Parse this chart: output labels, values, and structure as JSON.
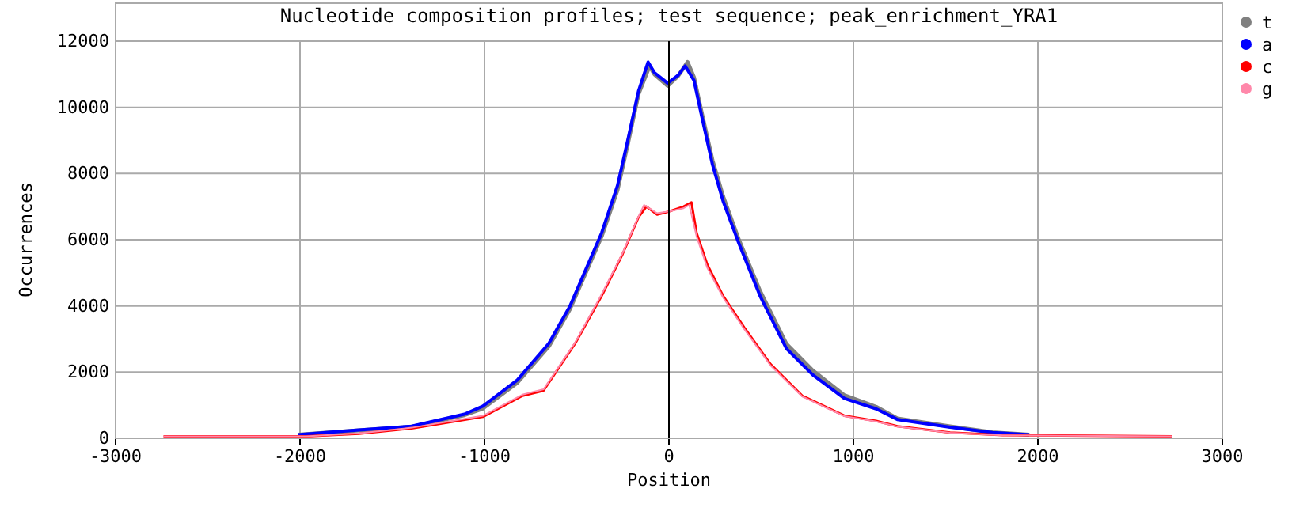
{
  "chart_data": {
    "type": "line",
    "title": "Nucleotide composition profiles; test sequence; peak_enrichment_YRA1",
    "xlabel": "Position",
    "ylabel": "Occurrences",
    "xlim": [
      -3000,
      3000
    ],
    "xticks": [
      -3000,
      -2000,
      -1000,
      0,
      1000,
      2000,
      3000
    ],
    "ylim": [
      0,
      12000
    ],
    "yticks": [
      0,
      2000,
      4000,
      6000,
      8000,
      10000,
      12000
    ],
    "grid": true,
    "legend": "top right",
    "ref_lines": [
      {
        "axis": "x",
        "value": 0,
        "color": "#000000"
      }
    ],
    "series": [
      {
        "name": "t",
        "color": "#808080",
        "x": [
          -2010,
          -1681,
          -1395,
          -1109,
          -1009,
          -822,
          -651,
          -537,
          -365,
          -279,
          -221,
          -165,
          -105,
          -79,
          -7,
          50,
          101,
          136,
          179,
          236,
          294,
          379,
          494,
          637,
          779,
          951,
          1123,
          1238,
          1524,
          1753,
          1953
        ],
        "values": [
          110,
          240,
          350,
          700,
          900,
          1680,
          2780,
          3900,
          6100,
          7500,
          8950,
          10400,
          11250,
          11000,
          10650,
          10950,
          11367,
          10900,
          9800,
          8400,
          7300,
          6000,
          4450,
          2850,
          2050,
          1300,
          950,
          600,
          360,
          180,
          110
        ]
      },
      {
        "name": "a",
        "color": "#0000ff",
        "x": [
          -2010,
          -1681,
          -1395,
          -1109,
          -1009,
          -822,
          -651,
          -537,
          -365,
          -279,
          -221,
          -165,
          -113,
          -79,
          -7,
          50,
          88,
          136,
          179,
          236,
          294,
          379,
          494,
          637,
          779,
          951,
          1123,
          1238,
          1524,
          1753,
          1953
        ],
        "values": [
          110,
          250,
          365,
          730,
          970,
          1760,
          2870,
          3990,
          6205,
          7635,
          9060,
          10490,
          11367,
          11050,
          10730,
          10970,
          11250,
          10810,
          9700,
          8270,
          7160,
          5890,
          4300,
          2710,
          1920,
          1205,
          890,
          570,
          333,
          175,
          110
        ]
      },
      {
        "name": "c",
        "color": "#ff0000",
        "x": [
          -2740,
          -1967,
          -1681,
          -1395,
          -1009,
          -794,
          -680,
          -508,
          -365,
          -251,
          -165,
          -122,
          -64,
          -7,
          79,
          122,
          150,
          208,
          294,
          408,
          551,
          723,
          951,
          1123,
          1238,
          1524,
          1810,
          2725
        ],
        "values": [
          60,
          60,
          140,
          300,
          650,
          1285,
          1440,
          2870,
          4300,
          5570,
          6680,
          7000,
          6760,
          6840,
          7000,
          7130,
          6205,
          5250,
          4300,
          3350,
          2240,
          1285,
          683,
          524,
          365,
          175,
          95,
          60
        ]
      },
      {
        "name": "g",
        "color": "#ff88aa",
        "x": [
          -2740,
          -1967,
          -1681,
          -1395,
          -1009,
          -794,
          -680,
          -508,
          -365,
          -251,
          -165,
          -135,
          -64,
          -7,
          79,
          110,
          150,
          208,
          294,
          408,
          551,
          723,
          951,
          1123,
          1238,
          1524,
          1810,
          2725
        ],
        "values": [
          60,
          60,
          150,
          320,
          680,
          1320,
          1480,
          2900,
          4350,
          5600,
          6700,
          7050,
          6800,
          6850,
          6950,
          7050,
          6100,
          5150,
          4250,
          3300,
          2200,
          1260,
          670,
          510,
          355,
          170,
          90,
          60
        ]
      }
    ]
  }
}
